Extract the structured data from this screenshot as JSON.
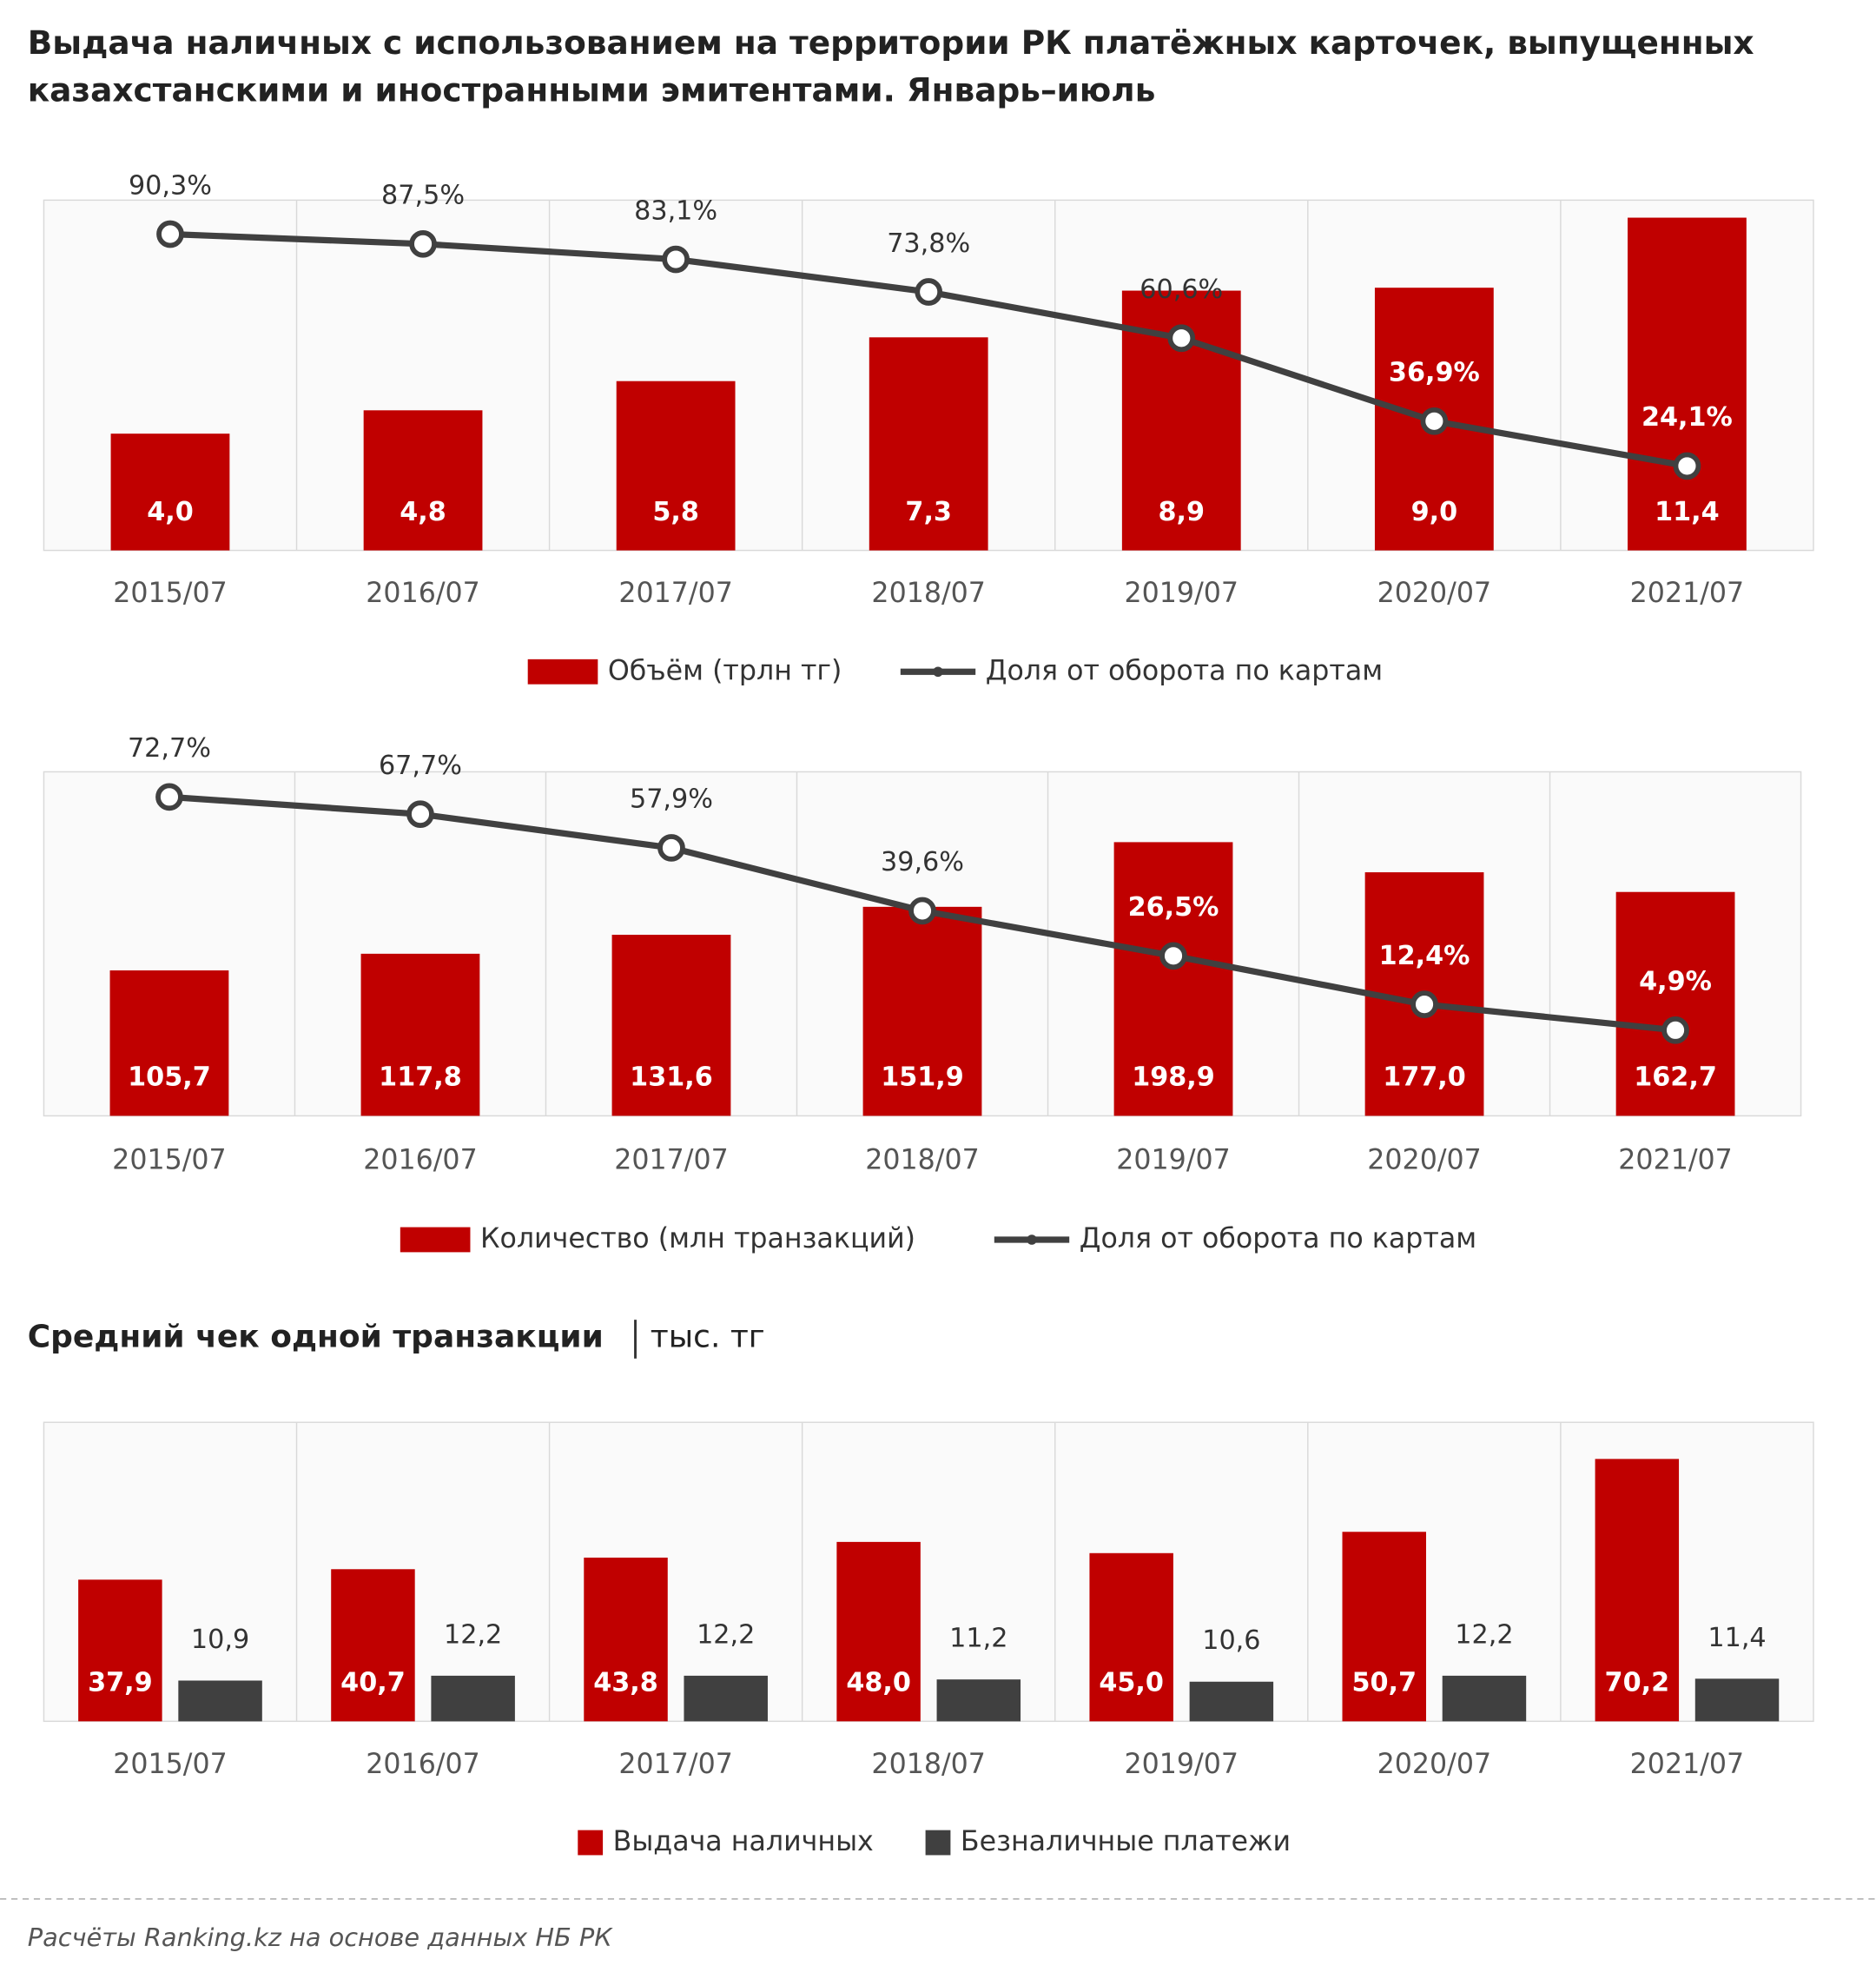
{
  "title": "Выдача наличных с использованием на территории РК платёжных карточек, выпущенных казахстанскими и иностранными эмитентами. Январь–июль",
  "source": "Расчёты Ranking.kz на основе данных НБ РК",
  "chart_data": [
    {
      "type": "bar-line",
      "categories": [
        "2015/07",
        "2016/07",
        "2017/07",
        "2018/07",
        "2019/07",
        "2020/07",
        "2021/07"
      ],
      "ylim": [
        0,
        12
      ],
      "y2lim": [
        0,
        100
      ],
      "series": [
        {
          "name": "Объём (трлн тг)",
          "color": "#c00000",
          "values": [
            4.0,
            4.8,
            5.8,
            7.3,
            8.9,
            9.0,
            11.4
          ],
          "value_labels": [
            "4,0",
            "4,8",
            "5,8",
            "7,3",
            "8,9",
            "9,0",
            "11,4"
          ]
        },
        {
          "name": "Доля от оборота по картам",
          "color": "#404040",
          "axis": "y2",
          "values": [
            90.3,
            87.5,
            83.1,
            73.8,
            60.6,
            36.9,
            24.1
          ],
          "value_labels": [
            "90,3%",
            "87,5%",
            "83,1%",
            "73,8%",
            "60,6%",
            "36,9%",
            "24,1%"
          ]
        }
      ]
    },
    {
      "type": "bar-line",
      "categories": [
        "2015/07",
        "2016/07",
        "2017/07",
        "2018/07",
        "2019/07",
        "2020/07",
        "2021/07"
      ],
      "ylim": [
        0,
        250
      ],
      "y2lim": [
        -20,
        80
      ],
      "series": [
        {
          "name": "Количество (млн транзакций)",
          "color": "#c00000",
          "values": [
            105.7,
            117.8,
            131.6,
            151.9,
            198.9,
            177.0,
            162.7
          ],
          "value_labels": [
            "105,7",
            "117,8",
            "131,6",
            "151,9",
            "198,9",
            "177,0",
            "162,7"
          ]
        },
        {
          "name": "Доля от оборота по картам",
          "color": "#404040",
          "axis": "y2",
          "values": [
            72.7,
            67.7,
            57.9,
            39.6,
            26.5,
            12.4,
            4.9
          ],
          "value_labels": [
            "72,7%",
            "67,7%",
            "57,9%",
            "39,6%",
            "26,5%",
            "12,4%",
            "4,9%"
          ]
        }
      ]
    },
    {
      "type": "bar",
      "title": "Средний чек одной транзакции",
      "subtitle": "тыс. тг",
      "categories": [
        "2015/07",
        "2016/07",
        "2017/07",
        "2018/07",
        "2019/07",
        "2020/07",
        "2021/07"
      ],
      "ylim": [
        0,
        80
      ],
      "series": [
        {
          "name": "Выдача наличных",
          "color": "#c00000",
          "values": [
            37.9,
            40.7,
            43.8,
            48.0,
            45.0,
            50.7,
            70.2
          ],
          "value_labels": [
            "37,9",
            "40,7",
            "43,8",
            "48,0",
            "45,0",
            "50,7",
            "70,2"
          ]
        },
        {
          "name": "Безналичные платежи",
          "color": "#404040",
          "values": [
            10.9,
            12.2,
            12.2,
            11.2,
            10.6,
            12.2,
            11.4
          ],
          "value_labels": [
            "10,9",
            "12,2",
            "12,2",
            "11,2",
            "10,6",
            "12,2",
            "11,4"
          ]
        }
      ]
    }
  ]
}
